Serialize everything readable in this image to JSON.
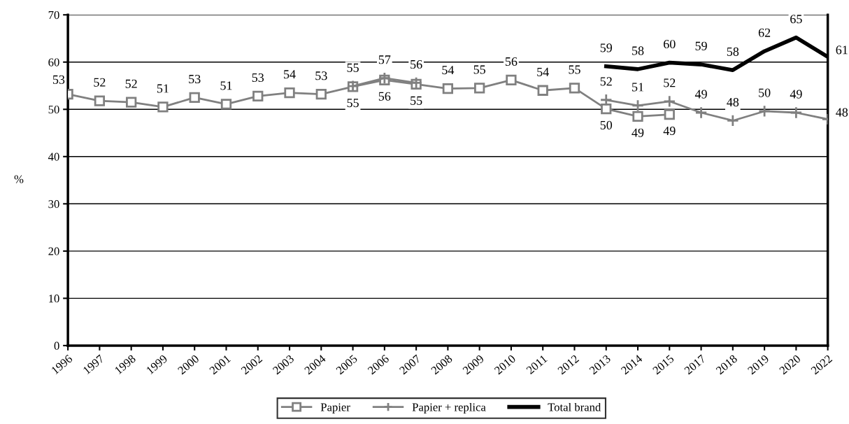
{
  "chart_data": {
    "type": "line",
    "ylabel": "%",
    "categories": [
      "1996",
      "1997",
      "1998",
      "1999",
      "2000",
      "2001",
      "2002",
      "2003",
      "2004",
      "2005",
      "2006",
      "2007",
      "2008",
      "2009",
      "2010",
      "2011",
      "2012",
      "2013",
      "2014",
      "2015",
      "2017",
      "2018",
      "2019",
      "2020",
      "2022"
    ],
    "series": [
      {
        "name": "Papier",
        "color": "#808080",
        "marker": "square",
        "values": [
          53.2,
          51.8,
          51.5,
          50.5,
          52.5,
          51.1,
          52.8,
          53.5,
          53.2,
          54.8,
          56.2,
          55.3,
          54.4,
          54.5,
          56.2,
          54.0,
          54.5,
          50.1,
          48.5,
          48.9,
          null,
          null,
          null,
          null,
          null
        ],
        "value_labels": [
          "53",
          "52",
          "52",
          "51",
          "53",
          "51",
          "53",
          "54",
          "53",
          "55",
          "56",
          "55",
          "54",
          "55",
          "56",
          "54",
          "55",
          "50",
          "49",
          "49",
          null,
          null,
          null,
          null,
          null
        ]
      },
      {
        "name": "Papier + replica",
        "color": "#808080",
        "marker": "cross",
        "values": [
          null,
          null,
          null,
          null,
          null,
          null,
          null,
          null,
          null,
          54.9,
          56.6,
          55.6,
          null,
          null,
          null,
          null,
          null,
          52.0,
          50.8,
          51.7,
          49.3,
          47.6,
          49.6,
          49.3,
          47.9
        ],
        "value_labels": [
          null,
          null,
          null,
          null,
          null,
          null,
          null,
          null,
          null,
          "55",
          "57",
          "56",
          null,
          null,
          null,
          null,
          null,
          "52",
          "51",
          "52",
          "49",
          "48",
          "50",
          "49",
          "48"
        ]
      },
      {
        "name": "Total brand",
        "color": "#000000",
        "marker": "none",
        "values": [
          null,
          null,
          null,
          null,
          null,
          null,
          null,
          null,
          null,
          null,
          null,
          null,
          null,
          null,
          null,
          null,
          null,
          59.1,
          58.5,
          59.9,
          59.5,
          58.3,
          62.3,
          65.2,
          61.1
        ],
        "value_labels": [
          null,
          null,
          null,
          null,
          null,
          null,
          null,
          null,
          null,
          null,
          null,
          null,
          null,
          null,
          null,
          null,
          null,
          "59",
          "58",
          "60",
          "59",
          "58",
          "62",
          "65",
          "61"
        ]
      }
    ],
    "ylim": [
      0,
      70
    ],
    "yticks": [
      0,
      10,
      20,
      30,
      40,
      50,
      60,
      70
    ],
    "grid": "y",
    "legend": "bottom"
  }
}
